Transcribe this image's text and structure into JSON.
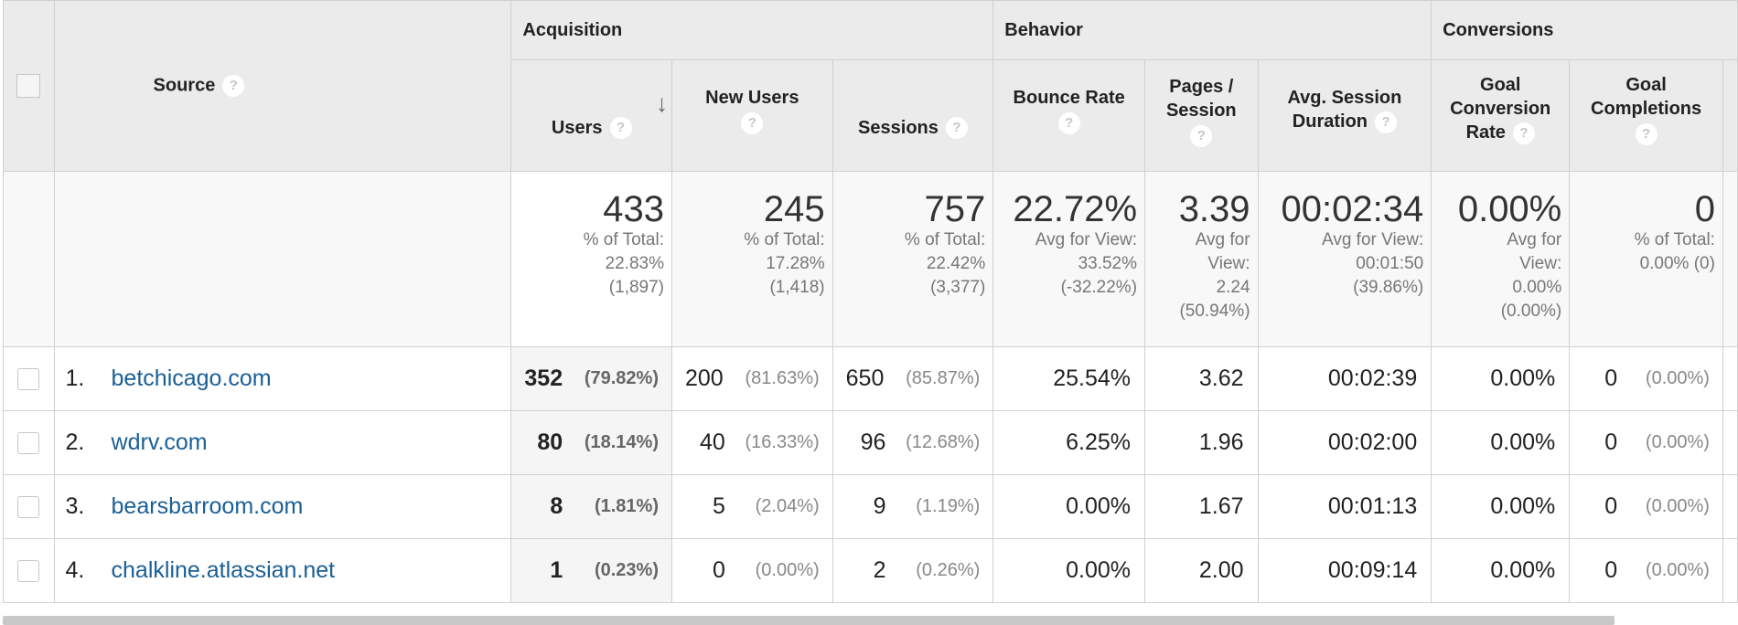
{
  "header": {
    "source_label": "Source",
    "groups": {
      "acquisition": "Acquisition",
      "behavior": "Behavior",
      "conversions": "Conversions"
    },
    "columns": {
      "users": "Users",
      "new_users": "New Users",
      "sessions": "Sessions",
      "bounce_rate": "Bounce Rate",
      "pages_session": "Pages / Session",
      "avg_session_duration": "Avg. Session Duration",
      "goal_conversion_rate": "Goal Conversion Rate",
      "goal_completions": "Goal Completions"
    },
    "help_glyph": "?",
    "sort_glyph": "↓"
  },
  "totals": {
    "users": {
      "value": "433",
      "l1": "% of Total:",
      "l2": "22.83%",
      "l3": "(1,897)"
    },
    "new_users": {
      "value": "245",
      "l1": "% of Total:",
      "l2": "17.28%",
      "l3": "(1,418)"
    },
    "sessions": {
      "value": "757",
      "l1": "% of Total:",
      "l2": "22.42%",
      "l3": "(3,377)"
    },
    "bounce_rate": {
      "value": "22.72%",
      "l1": "Avg for View:",
      "l2": "33.52%",
      "l3": "(-32.22%)"
    },
    "pages_session": {
      "value": "3.39",
      "l1": "Avg for",
      "l2": "View:",
      "l3": "2.24",
      "l4": "(50.94%)"
    },
    "avg_session_duration": {
      "value": "00:02:34",
      "l1": "Avg for View:",
      "l2": "00:01:50",
      "l3": "(39.86%)"
    },
    "goal_conversion_rate": {
      "value": "0.00%",
      "l1": "Avg for",
      "l2": "View:",
      "l3": "0.00%",
      "l4": "(0.00%)"
    },
    "goal_completions": {
      "value": "0",
      "l1": "% of Total:",
      "l2": "0.00% (0)"
    }
  },
  "rows": [
    {
      "rank": "1.",
      "source": "betchicago.com",
      "users": "352",
      "users_pct": "(79.82%)",
      "new_users": "200",
      "new_users_pct": "(81.63%)",
      "sessions": "650",
      "sessions_pct": "(85.87%)",
      "bounce_rate": "25.54%",
      "pages_session": "3.62",
      "avg_session_duration": "00:02:39",
      "goal_conversion_rate": "0.00%",
      "goal_completions": "0",
      "goal_completions_pct": "(0.00%)"
    },
    {
      "rank": "2.",
      "source": "wdrv.com",
      "users": "80",
      "users_pct": "(18.14%)",
      "new_users": "40",
      "new_users_pct": "(16.33%)",
      "sessions": "96",
      "sessions_pct": "(12.68%)",
      "bounce_rate": "6.25%",
      "pages_session": "1.96",
      "avg_session_duration": "00:02:00",
      "goal_conversion_rate": "0.00%",
      "goal_completions": "0",
      "goal_completions_pct": "(0.00%)"
    },
    {
      "rank": "3.",
      "source": "bearsbarroom.com",
      "users": "8",
      "users_pct": "(1.81%)",
      "new_users": "5",
      "new_users_pct": "(2.04%)",
      "sessions": "9",
      "sessions_pct": "(1.19%)",
      "bounce_rate": "0.00%",
      "pages_session": "1.67",
      "avg_session_duration": "00:01:13",
      "goal_conversion_rate": "0.00%",
      "goal_completions": "0",
      "goal_completions_pct": "(0.00%)"
    },
    {
      "rank": "4.",
      "source": "chalkline.atlassian.net",
      "users": "1",
      "users_pct": "(0.23%)",
      "new_users": "0",
      "new_users_pct": "(0.00%)",
      "sessions": "2",
      "sessions_pct": "(0.26%)",
      "bounce_rate": "0.00%",
      "pages_session": "2.00",
      "avg_session_duration": "00:09:14",
      "goal_conversion_rate": "0.00%",
      "goal_completions": "0",
      "goal_completions_pct": "(0.00%)"
    }
  ]
}
